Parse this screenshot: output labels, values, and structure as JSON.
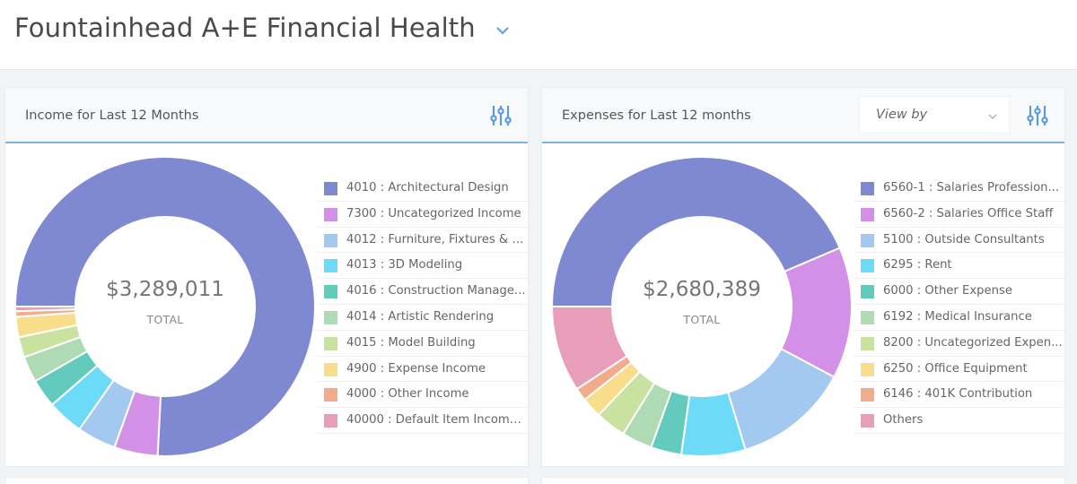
{
  "header": {
    "title": "Fountainhead A+E Financial Health",
    "chevron_icon": "chevron-down-icon"
  },
  "colors": {
    "accent": "#5b9bde",
    "header_underline": "#7fb2e6",
    "page_bg": "#f1f4f6"
  },
  "income_card": {
    "title": "Income for Last 12 Months",
    "settings_icon": "sliders-icon",
    "total_value": "$3,289,011",
    "total_label": "TOTAL",
    "legend": [
      {
        "label": "4010 : Architectural Design",
        "color": "#7f89d1"
      },
      {
        "label": "7300 : Uncategorized Income",
        "color": "#d291e6"
      },
      {
        "label": "4012 : Furniture, Fixtures & E...",
        "color": "#a3c9f1"
      },
      {
        "label": "4013 : 3D Modeling",
        "color": "#6ddaf8"
      },
      {
        "label": "4016 : Construction Manage...",
        "color": "#63cbbd"
      },
      {
        "label": "4014 : Artistic Rendering",
        "color": "#aedbb3"
      },
      {
        "label": "4015 : Model Building",
        "color": "#c9e2a0"
      },
      {
        "label": "4900 : Expense Income",
        "color": "#f8dd8a"
      },
      {
        "label": "4000 : Other Income",
        "color": "#f3ac8b"
      },
      {
        "label": "40000 : Default Item Income ...",
        "color": "#e89db9"
      }
    ]
  },
  "expenses_card": {
    "title": "Expenses for Last 12 months",
    "view_by_placeholder": "View by",
    "settings_icon": "sliders-icon",
    "total_value": "$2,680,389",
    "total_label": "TOTAL",
    "legend": [
      {
        "label": "6560-1 : Salaries Profession...",
        "color": "#7f89d1"
      },
      {
        "label": "6560-2 : Salaries Office Staff",
        "color": "#d291e6"
      },
      {
        "label": "5100 : Outside Consultants",
        "color": "#a3c9f1"
      },
      {
        "label": "6295 : Rent",
        "color": "#6ddaf8"
      },
      {
        "label": "6000 : Other Expense",
        "color": "#63cbbd"
      },
      {
        "label": "6192 : Medical Insurance",
        "color": "#aedbb3"
      },
      {
        "label": "8200 : Uncategorized Expen...",
        "color": "#c9e2a0"
      },
      {
        "label": "6250 : Office Equipment",
        "color": "#f8dd8a"
      },
      {
        "label": "6146 : 401K Contribution",
        "color": "#f3ac8b"
      },
      {
        "label": "Others",
        "color": "#e89db9"
      }
    ]
  },
  "chart_data": [
    {
      "type": "pie",
      "title": "Income for Last 12 Months",
      "total": 3289011,
      "categories": [
        "4010 : Architectural Design",
        "7300 : Uncategorized Income",
        "4012 : Furniture, Fixtures & E...",
        "4013 : 3D Modeling",
        "4016 : Construction Manage...",
        "4014 : Artistic Rendering",
        "4015 : Model Building",
        "4900 : Expense Income",
        "4000 : Other Income",
        "40000 : Default Item Income ..."
      ],
      "values": [
        75.8,
        4.7,
        4.2,
        3.9,
        3.1,
        2.8,
        2.2,
        2.2,
        0.6,
        0.5
      ],
      "units": "percent (estimated from slice angles)",
      "legend_position": "right",
      "donut": true
    },
    {
      "type": "pie",
      "title": "Expenses for Last 12 months",
      "total": 2680389,
      "categories": [
        "6560-1 : Salaries Profession...",
        "6560-2 : Salaries Office Staff",
        "5100 : Outside Consultants",
        "6295 : Rent",
        "6000 : Other Expense",
        "6192 : Medical Insurance",
        "8200 : Uncategorized Expen...",
        "6250 : Office Equipment",
        "6146 : 401K Contribution",
        "Others"
      ],
      "values": [
        43.6,
        14.2,
        12.5,
        6.9,
        3.3,
        3.3,
        3.3,
        2.2,
        1.4,
        9.3
      ],
      "units": "percent (estimated from slice angles)",
      "legend_position": "right",
      "donut": true
    }
  ]
}
